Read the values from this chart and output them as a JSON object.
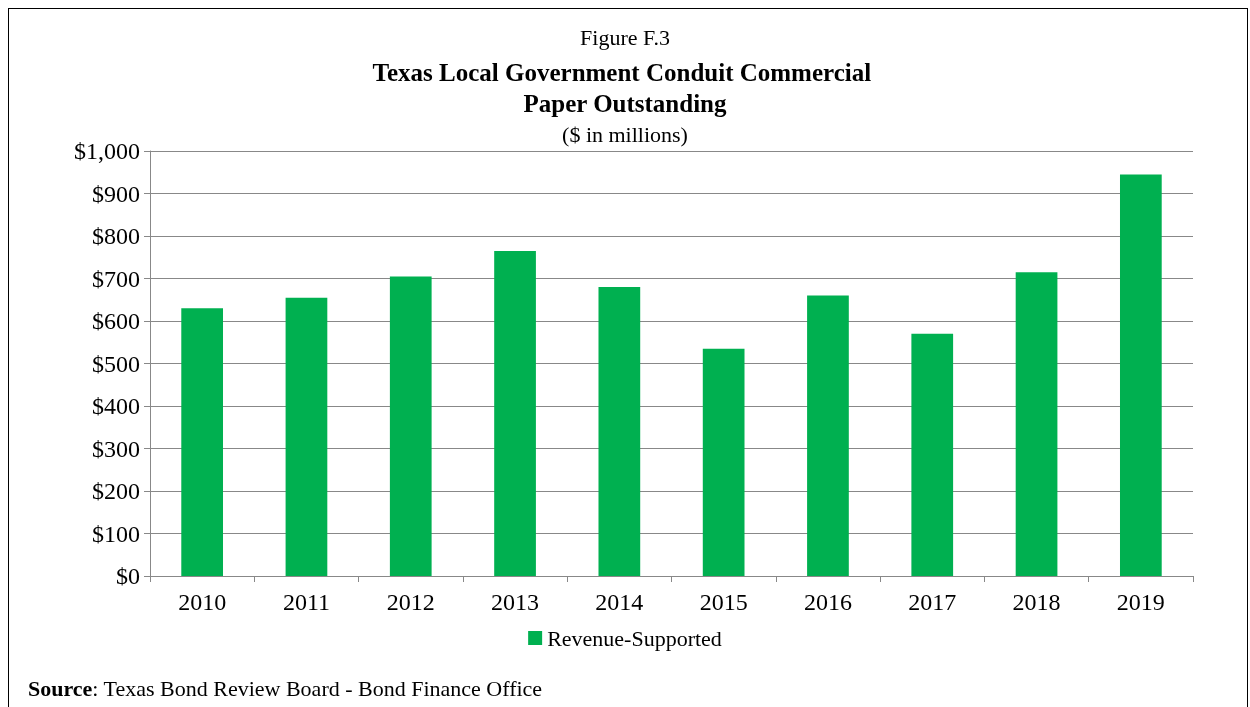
{
  "chart_data": {
    "type": "bar",
    "title": "Texas Local Government Conduit Commercial Paper Outstanding",
    "subtitle": "($ in millions)",
    "annotations": [
      "Figure F.3",
      "Source: Texas Bond Review Board - Bond Finance Office"
    ],
    "categories": [
      "2010",
      "2011",
      "2012",
      "2013",
      "2014",
      "2015",
      "2016",
      "2017",
      "2018",
      "2019"
    ],
    "series": [
      {
        "name": "Revenue-Supported",
        "color": "#00b050",
        "values": [
          630,
          655,
          705,
          765,
          680,
          535,
          660,
          570,
          715,
          945
        ]
      }
    ],
    "ylim": [
      0,
      1000
    ],
    "yticks": [
      {
        "value": 0,
        "label": "$0"
      },
      {
        "value": 100,
        "label": "$100"
      },
      {
        "value": 200,
        "label": "$200"
      },
      {
        "value": 300,
        "label": "$300"
      },
      {
        "value": 400,
        "label": "$400"
      },
      {
        "value": 500,
        "label": "$500"
      },
      {
        "value": 600,
        "label": "$600"
      },
      {
        "value": 700,
        "label": "$700"
      },
      {
        "value": 800,
        "label": "$800"
      },
      {
        "value": 900,
        "label": "$900"
      },
      {
        "value": 1000,
        "label": "$1,000"
      }
    ],
    "grid": "y",
    "legend": "bottom"
  }
}
